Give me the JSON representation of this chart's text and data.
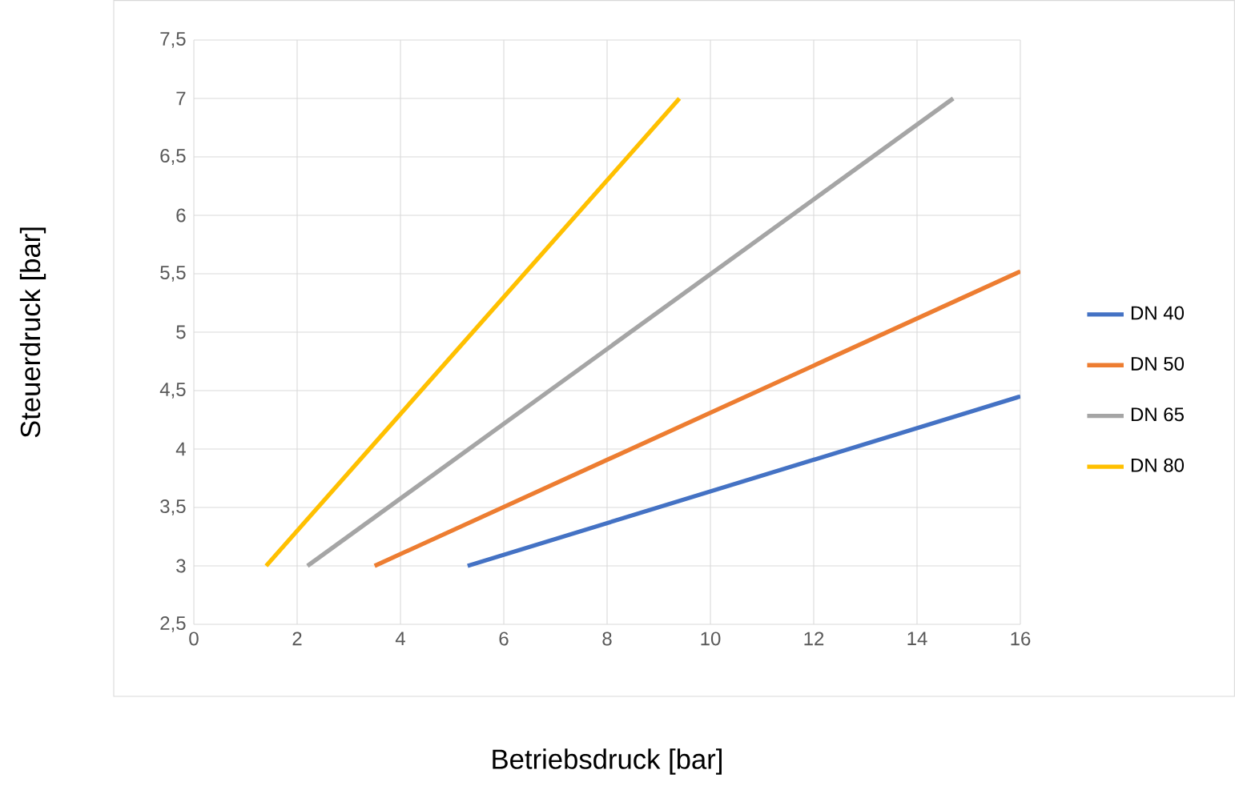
{
  "chart_data": {
    "type": "line",
    "xlabel": "Betriebsdruck [bar]",
    "ylabel": "Steuerdruck [bar]",
    "xlim": [
      0,
      16
    ],
    "xticks": [
      0,
      2,
      4,
      6,
      8,
      10,
      12,
      14,
      16
    ],
    "ylim": [
      2.5,
      7.5
    ],
    "yticks": [
      {
        "value": 2.5,
        "label": "2,5"
      },
      3,
      {
        "value": 3.5,
        "label": "3,5"
      },
      4,
      {
        "value": 4.5,
        "label": "4,5"
      },
      5,
      {
        "value": 5.5,
        "label": "5,5"
      },
      6,
      {
        "value": 6.5,
        "label": "6,5"
      },
      7,
      {
        "value": 7.5,
        "label": "7,5"
      }
    ],
    "grid": true,
    "legend": "right",
    "series": [
      {
        "name": "DN 40",
        "color": "#4472c4",
        "x": [
          5.3,
          16
        ],
        "values": [
          3,
          4.45
        ]
      },
      {
        "name": "DN 50",
        "color": "#ed7d31",
        "x": [
          3.5,
          16
        ],
        "values": [
          3,
          5.52
        ]
      },
      {
        "name": "DN 65",
        "color": "#a5a5a5",
        "x": [
          2.2,
          14.7
        ],
        "values": [
          3,
          7
        ]
      },
      {
        "name": "DN 80",
        "color": "#ffc000",
        "x": [
          1.4,
          9.4
        ],
        "values": [
          3,
          7
        ]
      }
    ]
  }
}
